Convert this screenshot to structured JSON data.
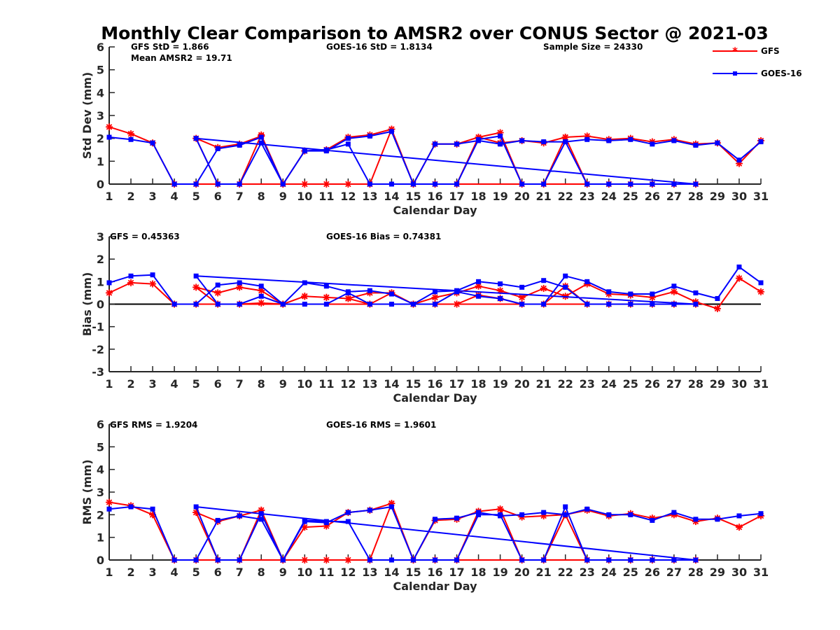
{
  "colors": {
    "gfs": "#ff0000",
    "goes": "#0000ff",
    "axis": "#262626"
  },
  "legend": {
    "gfs": "GFS",
    "goes": "GOES-16",
    "placement": "top-right"
  },
  "chart_data": {
    "title": "Monthly Clear Comparison to AMSR2 over CONUS Sector @ 2021-03",
    "panels": [
      {
        "type": "line",
        "ylabel": "Std Dev (mm)",
        "xlabel": "Calendar Day",
        "ylim": [
          0,
          6
        ],
        "yticks": [
          "0",
          "1",
          "2",
          "3",
          "4",
          "5",
          "6"
        ],
        "xticks": [
          "1",
          "2",
          "3",
          "4",
          "5",
          "6",
          "7",
          "8",
          "9",
          "10",
          "11",
          "12",
          "13",
          "14",
          "15",
          "16",
          "17",
          "18",
          "19",
          "20",
          "21",
          "22",
          "23",
          "24",
          "25",
          "26",
          "27",
          "28",
          "29",
          "30",
          "31"
        ],
        "annotations": [
          "GFS StD = 1.866",
          "Mean AMSR2 = 19.71",
          "GOES-16 StD = 1.8134",
          "Sample Size = 24330"
        ],
        "series": [
          {
            "name": "GFS",
            "x": [
              1,
              2,
              3,
              4,
              5,
              28,
              27,
              26,
              25,
              24,
              23,
              22,
              21,
              20,
              19,
              18,
              17,
              16,
              15,
              14,
              13,
              12,
              11,
              10,
              9,
              8,
              7,
              6,
              5,
              6,
              7,
              8,
              9,
              10,
              11,
              12,
              13,
              14,
              15,
              16,
              17,
              18,
              19,
              20,
              21,
              22,
              23,
              24,
              25,
              26,
              27,
              28,
              29,
              30,
              31
            ],
            "y": [
              2.5,
              2.2,
              1.8,
              0,
              0,
              0,
              0,
              0,
              0,
              0,
              0,
              2.05,
              0,
              0,
              2.25,
              2.05,
              0,
              0,
              0,
              2.4,
              0,
              0,
              0,
              0,
              0,
              2.15,
              0,
              0,
              2.0,
              1.6,
              1.75,
              2.1,
              0,
              1.45,
              1.5,
              2.05,
              2.15,
              2.4,
              0,
              1.75,
              1.75,
              2.05,
              1.8,
              1.9,
              1.8,
              2.05,
              2.1,
              1.95,
              2.0,
              1.85,
              1.95,
              1.75,
              1.8,
              0.9,
              1.9
            ]
          },
          {
            "name": "GOES-16",
            "x": [
              1,
              2,
              3,
              4,
              5,
              6,
              7,
              8,
              9,
              10,
              11,
              12,
              13,
              14,
              15,
              16,
              17,
              18,
              19,
              20,
              21,
              22,
              23,
              24,
              25,
              26,
              27,
              28,
              5,
              6,
              7,
              8,
              9,
              10,
              11,
              12,
              13,
              14,
              15,
              16,
              17,
              18,
              19,
              20,
              21,
              22,
              23,
              24,
              25,
              26,
              27,
              28,
              29,
              30,
              31
            ],
            "y": [
              2.05,
              1.95,
              1.8,
              0,
              0,
              1.55,
              1.7,
              2.05,
              0,
              1.45,
              1.5,
              1.75,
              0,
              0,
              0,
              0,
              0,
              1.95,
              2.1,
              0,
              0,
              1.85,
              0,
              0,
              0,
              0,
              0,
              0,
              2.0,
              0,
              0,
              1.8,
              0,
              1.45,
              1.45,
              2.0,
              2.1,
              2.3,
              0,
              1.75,
              1.75,
              1.9,
              1.75,
              1.9,
              1.85,
              1.85,
              1.95,
              1.9,
              1.95,
              1.75,
              1.9,
              1.7,
              1.8,
              1.05,
              1.85
            ]
          }
        ]
      },
      {
        "type": "line",
        "ylabel": "Bias (mm)",
        "xlabel": "Calendar Day",
        "ylim": [
          -3,
          3
        ],
        "zero_line": true,
        "yticks": [
          "-3",
          "-2",
          "-1",
          "0",
          "1",
          "2",
          "3"
        ],
        "xticks": [
          "1",
          "2",
          "3",
          "4",
          "5",
          "6",
          "7",
          "8",
          "9",
          "10",
          "11",
          "12",
          "13",
          "14",
          "15",
          "16",
          "17",
          "18",
          "19",
          "20",
          "21",
          "22",
          "23",
          "24",
          "25",
          "26",
          "27",
          "28",
          "29",
          "30",
          "31"
        ],
        "annotations": [
          "GFS = 0.45363",
          "GOES-16 Bias = 0.74381"
        ],
        "series": [
          {
            "name": "GFS",
            "x": [
              1,
              2,
              3,
              4,
              5,
              28,
              27,
              26,
              25,
              24,
              23,
              22,
              21,
              20,
              19,
              18,
              17,
              16,
              15,
              14,
              13,
              12,
              11,
              10,
              9,
              8,
              7,
              6,
              5,
              6,
              7,
              8,
              9,
              10,
              11,
              12,
              13,
              14,
              15,
              16,
              17,
              18,
              19,
              20,
              21,
              22,
              23,
              24,
              25,
              26,
              27,
              28,
              29,
              30,
              31
            ],
            "y": [
              0.5,
              0.95,
              0.9,
              0,
              0,
              0,
              0,
              0,
              0,
              0,
              0,
              0.8,
              0,
              0,
              0.25,
              0.4,
              0,
              0,
              0,
              0.5,
              0,
              0.25,
              0.3,
              0.35,
              0,
              0.05,
              0,
              0,
              0.75,
              0.5,
              0.75,
              0.6,
              0,
              0.35,
              0.3,
              0.25,
              0.5,
              0.5,
              0,
              0.3,
              0.5,
              0.8,
              0.6,
              0.3,
              0.7,
              0.35,
              0.9,
              0.45,
              0.4,
              0.3,
              0.55,
              0.1,
              -0.2,
              1.15,
              0.55
            ]
          },
          {
            "name": "GOES-16",
            "x": [
              1,
              2,
              3,
              4,
              5,
              6,
              7,
              8,
              9,
              10,
              11,
              12,
              13,
              14,
              15,
              16,
              17,
              18,
              19,
              20,
              21,
              22,
              23,
              24,
              25,
              26,
              27,
              28,
              5,
              6,
              7,
              8,
              9,
              10,
              11,
              12,
              13,
              14,
              15,
              16,
              17,
              18,
              19,
              20,
              21,
              22,
              23,
              24,
              25,
              26,
              27,
              28,
              29,
              30,
              31
            ],
            "y": [
              0.95,
              1.25,
              1.3,
              0,
              0,
              0.85,
              0.95,
              0.8,
              0,
              0.95,
              0.8,
              0.55,
              0.6,
              0.45,
              0,
              0.55,
              0.6,
              1.0,
              0.9,
              0.75,
              1.05,
              0.75,
              0,
              0,
              0,
              0,
              0,
              0,
              1.25,
              0,
              0,
              0.35,
              0,
              0,
              0,
              0.5,
              0,
              0,
              0,
              0,
              0.55,
              0.35,
              0.25,
              0,
              0,
              1.25,
              1.0,
              0.55,
              0.45,
              0.45,
              0.8,
              0.5,
              0.25,
              1.65,
              0.95
            ]
          }
        ]
      },
      {
        "type": "line",
        "ylabel": "RMS (mm)",
        "xlabel": "Calendar Day",
        "ylim": [
          0,
          6
        ],
        "yticks": [
          "0",
          "1",
          "2",
          "3",
          "4",
          "5",
          "6"
        ],
        "xticks": [
          "1",
          "2",
          "3",
          "4",
          "5",
          "6",
          "7",
          "8",
          "9",
          "10",
          "11",
          "12",
          "13",
          "14",
          "15",
          "16",
          "17",
          "18",
          "19",
          "20",
          "21",
          "22",
          "23",
          "24",
          "25",
          "26",
          "27",
          "28",
          "29",
          "30",
          "31"
        ],
        "annotations": [
          "GFS RMS = 1.9204",
          "GOES-16 RMS = 1.9601"
        ],
        "series": [
          {
            "name": "GFS",
            "x": [
              1,
              2,
              3,
              4,
              5,
              28,
              27,
              26,
              25,
              24,
              23,
              22,
              21,
              20,
              19,
              18,
              17,
              16,
              15,
              14,
              13,
              12,
              11,
              10,
              9,
              8,
              7,
              6,
              5,
              6,
              7,
              8,
              9,
              10,
              11,
              12,
              13,
              14,
              15,
              16,
              17,
              18,
              19,
              20,
              21,
              22,
              23,
              24,
              25,
              26,
              27,
              28,
              29,
              30,
              31
            ],
            "y": [
              2.55,
              2.4,
              2.0,
              0,
              0,
              0,
              0,
              0,
              0,
              0,
              0,
              2.0,
              0,
              0,
              2.25,
              2.15,
              0,
              0,
              0,
              2.5,
              0,
              0,
              0,
              0,
              0,
              2.2,
              0,
              0,
              2.1,
              1.7,
              1.95,
              2.2,
              0,
              1.45,
              1.5,
              2.1,
              2.2,
              2.5,
              0,
              1.75,
              1.8,
              2.15,
              2.25,
              1.9,
              1.95,
              2.0,
              2.2,
              1.95,
              2.05,
              1.85,
              2.0,
              1.7,
              1.85,
              1.45,
              1.95
            ]
          },
          {
            "name": "GOES-16",
            "x": [
              1,
              2,
              3,
              4,
              5,
              6,
              7,
              8,
              9,
              10,
              11,
              12,
              13,
              14,
              15,
              16,
              17,
              18,
              19,
              20,
              21,
              22,
              23,
              24,
              25,
              26,
              27,
              28,
              5,
              6,
              7,
              8,
              9,
              10,
              11,
              12,
              13,
              14,
              15,
              16,
              17,
              18,
              19,
              20,
              21,
              22,
              23,
              24,
              25,
              26,
              27,
              28,
              29,
              30,
              31
            ],
            "y": [
              2.25,
              2.35,
              2.25,
              0,
              0,
              1.75,
              1.95,
              1.8,
              0,
              1.75,
              1.7,
              1.7,
              0,
              0,
              0,
              0,
              0,
              2.0,
              2.0,
              0,
              0,
              2.35,
              0,
              0,
              0,
              0,
              0,
              0,
              2.35,
              0,
              0,
              2.05,
              0,
              1.7,
              1.65,
              2.1,
              2.2,
              2.35,
              0,
              1.8,
              1.85,
              2.1,
              1.95,
              2.0,
              2.1,
              2.0,
              2.25,
              2.0,
              2.0,
              1.75,
              2.1,
              1.8,
              1.8,
              1.95,
              2.05
            ]
          }
        ]
      }
    ]
  }
}
